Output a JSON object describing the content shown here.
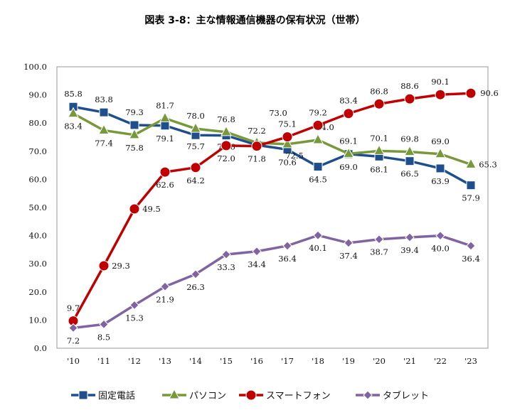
{
  "chart_data": {
    "type": "line",
    "title": "図表 3-8：主な情報通信機器の保有状況（世帯）",
    "categories": [
      "'10",
      "'11",
      "'12",
      "'13",
      "'14",
      "'15",
      "'16",
      "'17",
      "'18",
      "'19",
      "'20",
      "'21",
      "'22",
      "'23"
    ],
    "ylim": [
      0,
      100
    ],
    "yticks": [
      "0.0",
      "10.0",
      "20.0",
      "30.0",
      "40.0",
      "50.0",
      "60.0",
      "70.0",
      "80.0",
      "90.0",
      "100.0"
    ],
    "grid": false,
    "legend": "bottom",
    "series": [
      {
        "name": "固定電話",
        "color": "#1f4e8c",
        "marker": "square",
        "values": [
          85.8,
          83.8,
          79.3,
          79.1,
          75.7,
          75.6,
          72.2,
          70.6,
          64.5,
          69.0,
          68.1,
          66.5,
          63.9,
          57.9
        ]
      },
      {
        "name": "パソコン",
        "color": "#77993a",
        "marker": "triangle",
        "values": [
          83.4,
          77.4,
          75.8,
          81.7,
          78.0,
          76.8,
          73.0,
          72.5,
          74.0,
          69.1,
          70.1,
          69.8,
          69.0,
          65.3
        ]
      },
      {
        "name": "スマートフォン",
        "color": "#c00000",
        "marker": "circle",
        "values": [
          9.7,
          29.3,
          49.5,
          62.6,
          64.2,
          72.0,
          71.8,
          75.1,
          79.2,
          83.4,
          86.8,
          88.6,
          90.1,
          90.6
        ]
      },
      {
        "name": "タブレット",
        "color": "#8064a2",
        "marker": "diamond",
        "values": [
          7.2,
          8.5,
          15.3,
          21.9,
          26.3,
          33.3,
          34.4,
          36.4,
          40.1,
          37.4,
          38.7,
          39.4,
          40.0,
          36.4
        ]
      }
    ]
  }
}
